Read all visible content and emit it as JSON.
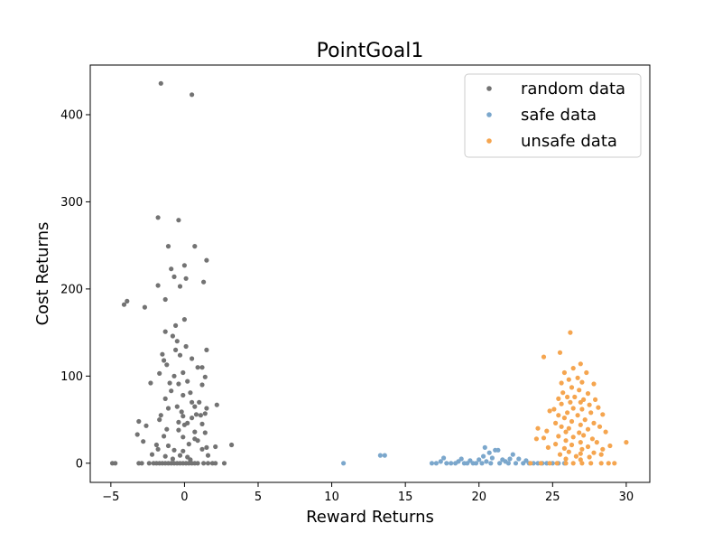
{
  "chart_data": {
    "type": "scatter",
    "title": "PointGoal1",
    "xlabel": "Reward Returns",
    "ylabel": "Cost Returns",
    "xlim": [
      -6.4,
      31.6
    ],
    "ylim": [
      -22,
      457
    ],
    "xticks": [
      -5,
      0,
      5,
      10,
      15,
      20,
      25,
      30
    ],
    "yticks": [
      0,
      100,
      200,
      300,
      400
    ],
    "grid": false,
    "legend": "top-right",
    "series": [
      {
        "name": "random data",
        "color": "#737373",
        "points": [
          [
            -1.6,
            436
          ],
          [
            0.5,
            423
          ],
          [
            -1.8,
            282
          ],
          [
            -0.4,
            279
          ],
          [
            -1.1,
            249
          ],
          [
            0.7,
            249
          ],
          [
            1.5,
            233
          ],
          [
            0,
            227
          ],
          [
            -0.9,
            223
          ],
          [
            -0.7,
            214
          ],
          [
            0.1,
            212
          ],
          [
            1.3,
            208
          ],
          [
            -1.8,
            204
          ],
          [
            -0.3,
            203
          ],
          [
            -3.9,
            186
          ],
          [
            -4.1,
            182
          ],
          [
            -2.7,
            179
          ],
          [
            -1.3,
            188
          ],
          [
            0,
            165
          ],
          [
            -0.6,
            158
          ],
          [
            -1.3,
            151
          ],
          [
            -0.8,
            146
          ],
          [
            -0.5,
            140
          ],
          [
            0.1,
            134
          ],
          [
            -0.6,
            130
          ],
          [
            1.5,
            130
          ],
          [
            -1.5,
            125
          ],
          [
            -0.3,
            124
          ],
          [
            0.5,
            120
          ],
          [
            -1.4,
            118
          ],
          [
            -1.2,
            113
          ],
          [
            0.9,
            110
          ],
          [
            1.2,
            110
          ],
          [
            -0.1,
            104
          ],
          [
            -1.7,
            103
          ],
          [
            -0.7,
            100
          ],
          [
            1.4,
            99
          ],
          [
            -2.3,
            92
          ],
          [
            -1,
            92
          ],
          [
            -0.4,
            91
          ],
          [
            0.2,
            94
          ],
          [
            1.2,
            90
          ],
          [
            -0.9,
            83
          ],
          [
            0.4,
            81
          ],
          [
            -0.1,
            78
          ],
          [
            -1.3,
            74
          ],
          [
            0.5,
            70
          ],
          [
            1,
            70
          ],
          [
            -0.5,
            65
          ],
          [
            0.7,
            65
          ],
          [
            1.5,
            63
          ],
          [
            2.2,
            67
          ],
          [
            -1.1,
            63
          ],
          [
            -0.2,
            59
          ],
          [
            0.8,
            56
          ],
          [
            1.4,
            57
          ],
          [
            -1.6,
            55
          ],
          [
            -0.1,
            54
          ],
          [
            0.5,
            52
          ],
          [
            1.1,
            55
          ],
          [
            -1.7,
            50
          ],
          [
            -3.1,
            48
          ],
          [
            -0.4,
            47
          ],
          [
            0.2,
            46
          ],
          [
            -2.6,
            43
          ],
          [
            0,
            44
          ],
          [
            1.2,
            45
          ],
          [
            -1.2,
            39
          ],
          [
            -0.4,
            38
          ],
          [
            0.7,
            36
          ],
          [
            1.4,
            35
          ],
          [
            -3.2,
            33
          ],
          [
            -1.4,
            31
          ],
          [
            -0.1,
            30
          ],
          [
            0.7,
            28
          ],
          [
            0.9,
            26
          ],
          [
            -2.8,
            25
          ],
          [
            -1.9,
            21
          ],
          [
            -1.1,
            20
          ],
          [
            0.3,
            22
          ],
          [
            1.5,
            18
          ],
          [
            2.1,
            19
          ],
          [
            3.2,
            21
          ],
          [
            -1.8,
            16
          ],
          [
            -0.7,
            15
          ],
          [
            -0.1,
            14
          ],
          [
            1.2,
            16
          ],
          [
            -2.2,
            10
          ],
          [
            -1.3,
            8
          ],
          [
            -0.3,
            9
          ],
          [
            0.2,
            7
          ],
          [
            1.6,
            9
          ],
          [
            -0.8,
            5
          ],
          [
            0.4,
            4
          ],
          [
            -4.9,
            0
          ],
          [
            -4.7,
            0
          ],
          [
            -3.1,
            0
          ],
          [
            -2.9,
            0
          ],
          [
            -2.4,
            0
          ],
          [
            -2.1,
            0
          ],
          [
            -1.9,
            0
          ],
          [
            -1.7,
            0
          ],
          [
            -1.5,
            0
          ],
          [
            -1.3,
            0
          ],
          [
            -1.1,
            0
          ],
          [
            -0.9,
            0
          ],
          [
            -0.7,
            0
          ],
          [
            -0.5,
            0
          ],
          [
            -0.3,
            0
          ],
          [
            -0.1,
            0
          ],
          [
            0.1,
            0
          ],
          [
            0.3,
            0
          ],
          [
            0.5,
            0
          ],
          [
            0.7,
            0
          ],
          [
            0.9,
            0
          ],
          [
            1.3,
            0
          ],
          [
            1.6,
            0
          ],
          [
            1.9,
            0
          ],
          [
            2.1,
            0
          ],
          [
            2.7,
            0
          ]
        ]
      },
      {
        "name": "safe data",
        "color": "#7ba7cc",
        "points": [
          [
            10.8,
            0
          ],
          [
            13.3,
            9
          ],
          [
            13.6,
            9
          ],
          [
            16.8,
            0
          ],
          [
            17.1,
            0
          ],
          [
            17.4,
            2
          ],
          [
            17.6,
            6
          ],
          [
            17.8,
            0
          ],
          [
            18.1,
            0
          ],
          [
            18.4,
            0
          ],
          [
            18.6,
            2
          ],
          [
            18.8,
            5
          ],
          [
            19,
            0
          ],
          [
            19.2,
            0
          ],
          [
            19.4,
            3
          ],
          [
            19.6,
            0
          ],
          [
            19.8,
            0
          ],
          [
            20,
            4
          ],
          [
            20.2,
            0
          ],
          [
            20.3,
            8
          ],
          [
            20.4,
            18
          ],
          [
            20.5,
            2
          ],
          [
            20.7,
            12
          ],
          [
            20.8,
            0
          ],
          [
            20.9,
            6
          ],
          [
            21.1,
            15
          ],
          [
            21.3,
            15
          ],
          [
            21.4,
            0
          ],
          [
            21.6,
            4
          ],
          [
            21.8,
            2
          ],
          [
            22,
            0
          ],
          [
            22.1,
            5
          ],
          [
            22.3,
            10
          ],
          [
            22.5,
            0
          ],
          [
            22.7,
            5
          ],
          [
            23,
            0
          ],
          [
            23.2,
            3
          ],
          [
            23.4,
            0
          ],
          [
            23.7,
            0
          ],
          [
            24,
            0
          ],
          [
            24.3,
            0
          ],
          [
            24.6,
            0
          ],
          [
            25,
            0
          ],
          [
            25.4,
            0
          ],
          [
            25.8,
            0
          ]
        ]
      },
      {
        "name": "unsafe data",
        "color": "#f5a54f",
        "points": [
          [
            26.2,
            150
          ],
          [
            25.5,
            127
          ],
          [
            24.4,
            122
          ],
          [
            26.9,
            114
          ],
          [
            26.4,
            109
          ],
          [
            25.8,
            104
          ],
          [
            27.3,
            104
          ],
          [
            26.7,
            98
          ],
          [
            26.1,
            96
          ],
          [
            25.6,
            92
          ],
          [
            27,
            93
          ],
          [
            27.8,
            91
          ],
          [
            26.3,
            87
          ],
          [
            26.8,
            84
          ],
          [
            25.7,
            81
          ],
          [
            27.4,
            80
          ],
          [
            26,
            76
          ],
          [
            26.5,
            76
          ],
          [
            25.4,
            74
          ],
          [
            27.1,
            73
          ],
          [
            27.9,
            73
          ],
          [
            26.2,
            70
          ],
          [
            26.9,
            70
          ],
          [
            25.6,
            68
          ],
          [
            27.5,
            67
          ],
          [
            28.1,
            64
          ],
          [
            25.1,
            62
          ],
          [
            26.4,
            63
          ],
          [
            27,
            62
          ],
          [
            24.8,
            60
          ],
          [
            26,
            58
          ],
          [
            27.6,
            58
          ],
          [
            25.4,
            55
          ],
          [
            26.7,
            55
          ],
          [
            28.4,
            56
          ],
          [
            25.8,
            52
          ],
          [
            27.2,
            50
          ],
          [
            26.3,
            48
          ],
          [
            25.2,
            46
          ],
          [
            27.8,
            46
          ],
          [
            26.9,
            44
          ],
          [
            25.6,
            42
          ],
          [
            28.2,
            42
          ],
          [
            26.1,
            40
          ],
          [
            27.4,
            39
          ],
          [
            24.6,
            37
          ],
          [
            25.9,
            36
          ],
          [
            26.8,
            35
          ],
          [
            28.6,
            36
          ],
          [
            27.1,
            32
          ],
          [
            25.4,
            31
          ],
          [
            26.4,
            30
          ],
          [
            24.4,
            29
          ],
          [
            27.7,
            28
          ],
          [
            25.9,
            26
          ],
          [
            26.9,
            24
          ],
          [
            28,
            24
          ],
          [
            25.2,
            22
          ],
          [
            26.3,
            21
          ],
          [
            27.4,
            19
          ],
          [
            28.9,
            20
          ],
          [
            24.7,
            18
          ],
          [
            25.8,
            17
          ],
          [
            27,
            16
          ],
          [
            28.4,
            16
          ],
          [
            26.1,
            13
          ],
          [
            26.9,
            11
          ],
          [
            27.8,
            12
          ],
          [
            25.5,
            10
          ],
          [
            28.3,
            10
          ],
          [
            26.6,
            8
          ],
          [
            27.5,
            7
          ],
          [
            25.9,
            5
          ],
          [
            26.9,
            4
          ],
          [
            30,
            24
          ],
          [
            23.9,
            28
          ],
          [
            24,
            40
          ],
          [
            23.5,
            0
          ],
          [
            24.2,
            0
          ],
          [
            24.8,
            0
          ],
          [
            25.3,
            0
          ],
          [
            25.9,
            0
          ],
          [
            26.4,
            0
          ],
          [
            27,
            0
          ],
          [
            27.6,
            0
          ],
          [
            28.3,
            0
          ],
          [
            28.8,
            0
          ],
          [
            29.2,
            0
          ]
        ]
      }
    ]
  }
}
